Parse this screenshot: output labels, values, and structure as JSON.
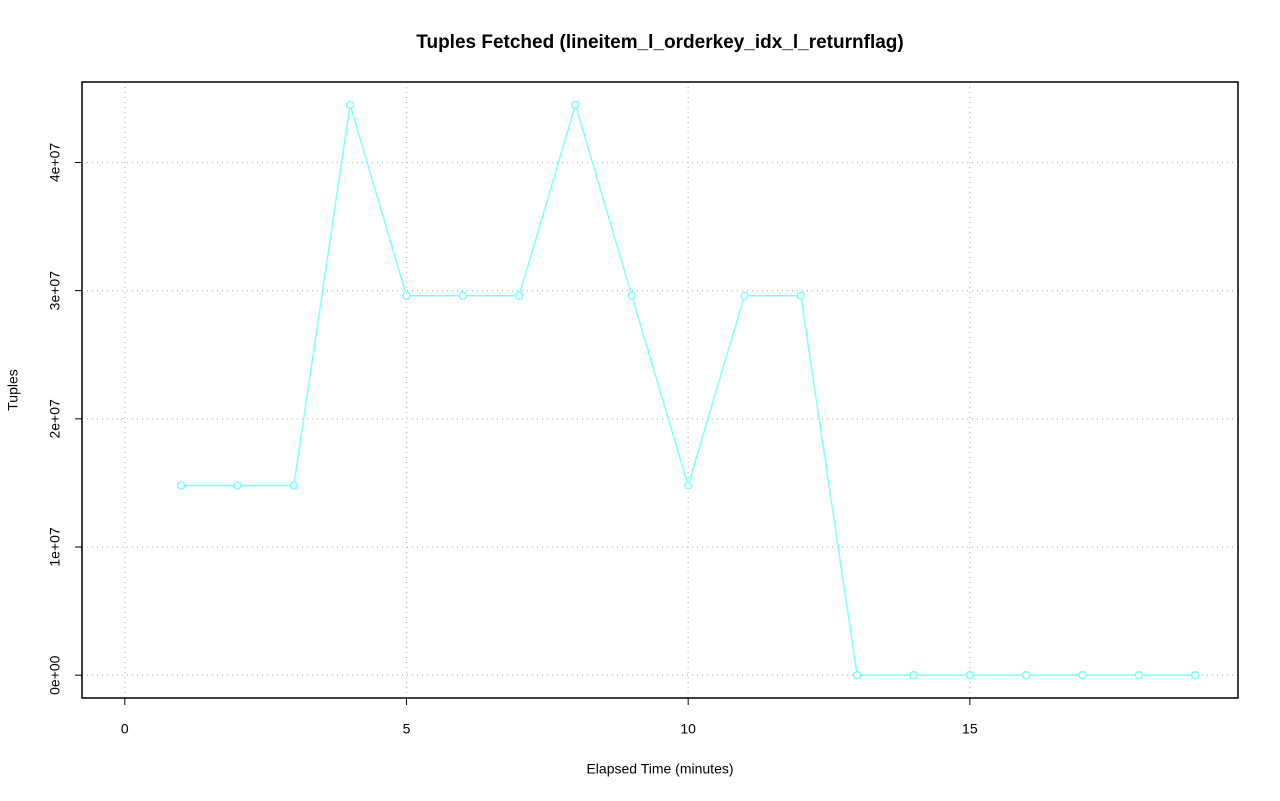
{
  "chart_data": {
    "type": "line",
    "title": "Tuples Fetched (lineitem_l_orderkey_idx_l_returnflag)",
    "x_label": "Elapsed Time (minutes)",
    "y_label": "Tuples",
    "x": [
      1,
      2,
      3,
      4,
      5,
      6,
      7,
      8,
      9,
      10,
      11,
      12,
      13,
      14,
      15,
      16,
      17,
      18,
      19
    ],
    "values": [
      14800000,
      14800000,
      14800000,
      44500000,
      29600000,
      29600000,
      29600000,
      44500000,
      29600000,
      14800000,
      29600000,
      29600000,
      0,
      0,
      0,
      0,
      0,
      0,
      0
    ],
    "color": "#7fffff",
    "xlim": [
      -0.76,
      19.76
    ],
    "xticks": [
      0,
      5,
      10,
      15
    ],
    "ylim": [
      -1780000,
      46280000
    ],
    "yticks": [
      {
        "value": 0,
        "label": "0e+00"
      },
      {
        "value": 10000000,
        "label": "1e+07"
      },
      {
        "value": 20000000,
        "label": "2e+07"
      },
      {
        "value": 30000000,
        "label": "3e+07"
      },
      {
        "value": 40000000,
        "label": "4e+07"
      }
    ],
    "grid": true
  }
}
